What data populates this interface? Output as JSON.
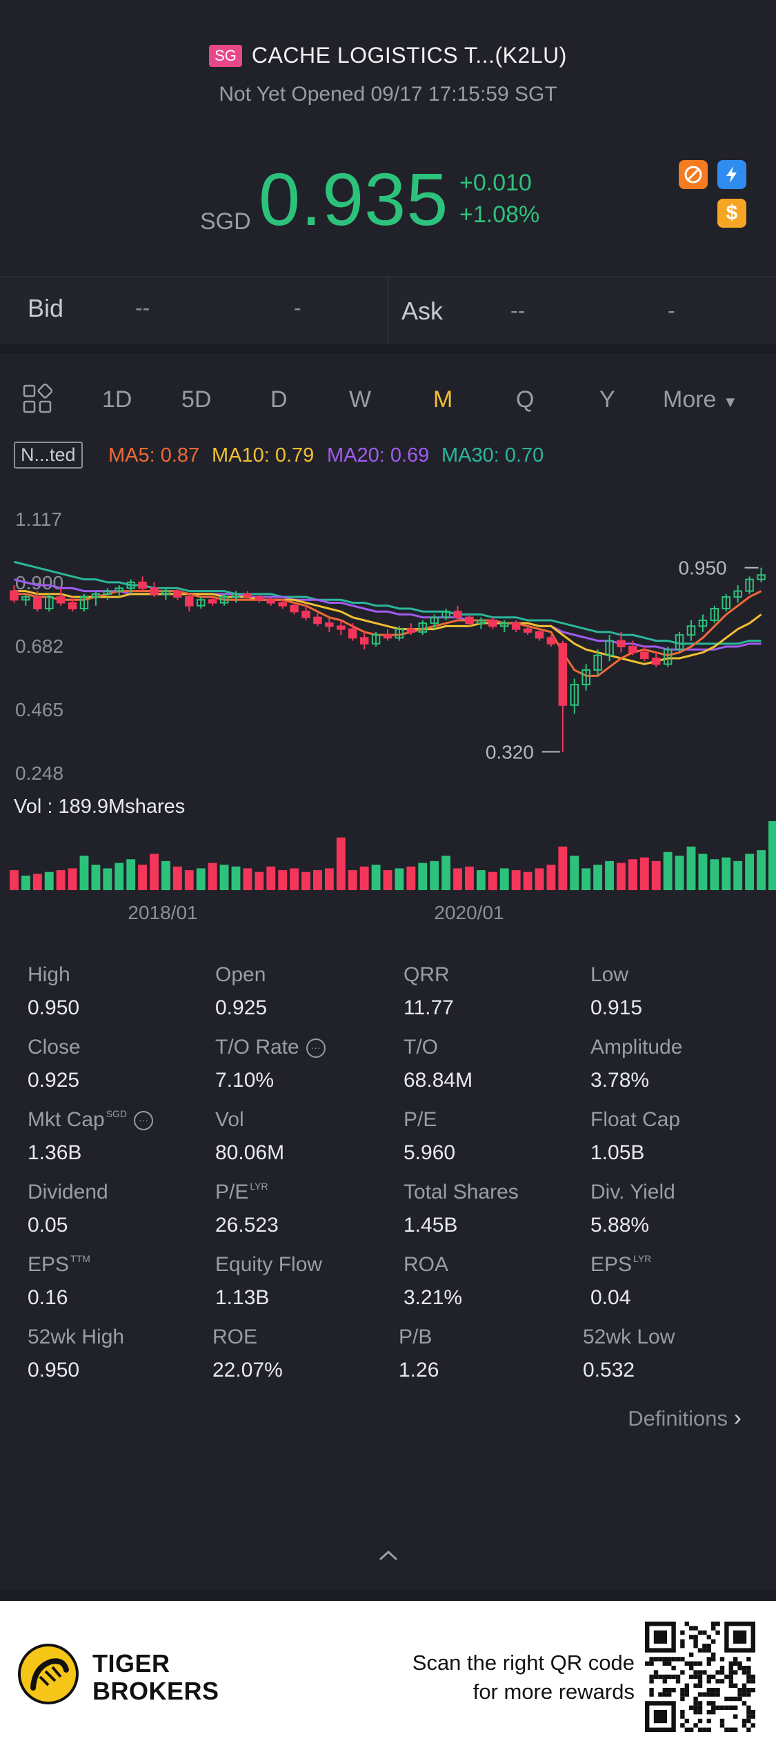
{
  "header": {
    "market_badge": "SG",
    "title": "CACHE LOGISTICS T...(K2LU)",
    "status": "Not Yet Opened 09/17 17:15:59 SGT"
  },
  "quote": {
    "currency": "SGD",
    "price": "0.935",
    "change": "+0.010",
    "change_pct": "+1.08%",
    "up_color": "#2dc27c",
    "down_color": "#f4365a"
  },
  "bid_ask": {
    "bid_label": "Bid",
    "bid_price": "--",
    "bid_size": "-",
    "ask_label": "Ask",
    "ask_price": "--",
    "ask_size": "-"
  },
  "tabs": {
    "items": [
      "1D",
      "5D",
      "D",
      "W",
      "M",
      "Q",
      "Y"
    ],
    "active": "M",
    "more": "More"
  },
  "indicators": {
    "adjust": "N...ted",
    "ma5": "MA5: 0.87",
    "ma10": "MA10: 0.79",
    "ma20": "MA20: 0.69",
    "ma30": "MA30: 0.70",
    "ma5_color": "#f06a35",
    "ma10_color": "#f2c031",
    "ma20_color": "#a05cf0",
    "ma30_color": "#29b79c"
  },
  "chart_data": {
    "type": "candlestick",
    "y_ticks": [
      "1.117",
      "0.900",
      "0.682",
      "0.465",
      "0.248"
    ],
    "ylim": [
      0.248,
      1.117
    ],
    "x_ticks": [
      "2018/01",
      "2020/01"
    ],
    "max_annotation": "0.950",
    "min_annotation": "0.320",
    "volume_label": "Vol  : 189.9Mshares",
    "candles": [
      {
        "o": 0.87,
        "h": 0.89,
        "l": 0.83,
        "c": 0.84
      },
      {
        "o": 0.84,
        "h": 0.86,
        "l": 0.82,
        "c": 0.85
      },
      {
        "o": 0.85,
        "h": 0.87,
        "l": 0.8,
        "c": 0.81
      },
      {
        "o": 0.81,
        "h": 0.86,
        "l": 0.8,
        "c": 0.85
      },
      {
        "o": 0.85,
        "h": 0.88,
        "l": 0.82,
        "c": 0.83
      },
      {
        "o": 0.83,
        "h": 0.85,
        "l": 0.8,
        "c": 0.81
      },
      {
        "o": 0.81,
        "h": 0.86,
        "l": 0.8,
        "c": 0.85
      },
      {
        "o": 0.85,
        "h": 0.87,
        "l": 0.82,
        "c": 0.86
      },
      {
        "o": 0.86,
        "h": 0.88,
        "l": 0.84,
        "c": 0.87
      },
      {
        "o": 0.87,
        "h": 0.89,
        "l": 0.85,
        "c": 0.88
      },
      {
        "o": 0.88,
        "h": 0.91,
        "l": 0.86,
        "c": 0.9
      },
      {
        "o": 0.9,
        "h": 0.92,
        "l": 0.87,
        "c": 0.88
      },
      {
        "o": 0.88,
        "h": 0.9,
        "l": 0.85,
        "c": 0.86
      },
      {
        "o": 0.86,
        "h": 0.88,
        "l": 0.84,
        "c": 0.87
      },
      {
        "o": 0.87,
        "h": 0.88,
        "l": 0.84,
        "c": 0.85
      },
      {
        "o": 0.85,
        "h": 0.86,
        "l": 0.8,
        "c": 0.82
      },
      {
        "o": 0.82,
        "h": 0.85,
        "l": 0.81,
        "c": 0.84
      },
      {
        "o": 0.84,
        "h": 0.85,
        "l": 0.82,
        "c": 0.83
      },
      {
        "o": 0.83,
        "h": 0.86,
        "l": 0.82,
        "c": 0.85
      },
      {
        "o": 0.85,
        "h": 0.87,
        "l": 0.83,
        "c": 0.86
      },
      {
        "o": 0.86,
        "h": 0.87,
        "l": 0.84,
        "c": 0.85
      },
      {
        "o": 0.85,
        "h": 0.86,
        "l": 0.83,
        "c": 0.84
      },
      {
        "o": 0.84,
        "h": 0.85,
        "l": 0.82,
        "c": 0.83
      },
      {
        "o": 0.83,
        "h": 0.84,
        "l": 0.81,
        "c": 0.82
      },
      {
        "o": 0.82,
        "h": 0.83,
        "l": 0.79,
        "c": 0.8
      },
      {
        "o": 0.8,
        "h": 0.82,
        "l": 0.77,
        "c": 0.78
      },
      {
        "o": 0.78,
        "h": 0.8,
        "l": 0.75,
        "c": 0.76
      },
      {
        "o": 0.76,
        "h": 0.78,
        "l": 0.73,
        "c": 0.75
      },
      {
        "o": 0.75,
        "h": 0.77,
        "l": 0.72,
        "c": 0.74
      },
      {
        "o": 0.74,
        "h": 0.76,
        "l": 0.7,
        "c": 0.71
      },
      {
        "o": 0.71,
        "h": 0.73,
        "l": 0.67,
        "c": 0.69
      },
      {
        "o": 0.69,
        "h": 0.73,
        "l": 0.68,
        "c": 0.72
      },
      {
        "o": 0.72,
        "h": 0.74,
        "l": 0.7,
        "c": 0.71
      },
      {
        "o": 0.71,
        "h": 0.75,
        "l": 0.7,
        "c": 0.74
      },
      {
        "o": 0.74,
        "h": 0.76,
        "l": 0.72,
        "c": 0.73
      },
      {
        "o": 0.73,
        "h": 0.77,
        "l": 0.72,
        "c": 0.76
      },
      {
        "o": 0.76,
        "h": 0.79,
        "l": 0.74,
        "c": 0.78
      },
      {
        "o": 0.78,
        "h": 0.81,
        "l": 0.77,
        "c": 0.8
      },
      {
        "o": 0.8,
        "h": 0.82,
        "l": 0.77,
        "c": 0.78
      },
      {
        "o": 0.78,
        "h": 0.79,
        "l": 0.75,
        "c": 0.76
      },
      {
        "o": 0.76,
        "h": 0.78,
        "l": 0.74,
        "c": 0.77
      },
      {
        "o": 0.77,
        "h": 0.78,
        "l": 0.74,
        "c": 0.75
      },
      {
        "o": 0.75,
        "h": 0.77,
        "l": 0.73,
        "c": 0.76
      },
      {
        "o": 0.76,
        "h": 0.77,
        "l": 0.73,
        "c": 0.74
      },
      {
        "o": 0.74,
        "h": 0.75,
        "l": 0.72,
        "c": 0.73
      },
      {
        "o": 0.73,
        "h": 0.74,
        "l": 0.7,
        "c": 0.71
      },
      {
        "o": 0.71,
        "h": 0.72,
        "l": 0.68,
        "c": 0.69
      },
      {
        "o": 0.69,
        "h": 0.7,
        "l": 0.32,
        "c": 0.48
      },
      {
        "o": 0.48,
        "h": 0.57,
        "l": 0.45,
        "c": 0.55
      },
      {
        "o": 0.55,
        "h": 0.62,
        "l": 0.53,
        "c": 0.6
      },
      {
        "o": 0.6,
        "h": 0.67,
        "l": 0.58,
        "c": 0.65
      },
      {
        "o": 0.65,
        "h": 0.72,
        "l": 0.63,
        "c": 0.7
      },
      {
        "o": 0.7,
        "h": 0.73,
        "l": 0.66,
        "c": 0.68
      },
      {
        "o": 0.68,
        "h": 0.7,
        "l": 0.65,
        "c": 0.66
      },
      {
        "o": 0.66,
        "h": 0.68,
        "l": 0.63,
        "c": 0.64
      },
      {
        "o": 0.64,
        "h": 0.66,
        "l": 0.61,
        "c": 0.62
      },
      {
        "o": 0.62,
        "h": 0.68,
        "l": 0.61,
        "c": 0.67
      },
      {
        "o": 0.67,
        "h": 0.73,
        "l": 0.66,
        "c": 0.72
      },
      {
        "o": 0.72,
        "h": 0.77,
        "l": 0.7,
        "c": 0.75
      },
      {
        "o": 0.75,
        "h": 0.79,
        "l": 0.73,
        "c": 0.77
      },
      {
        "o": 0.77,
        "h": 0.82,
        "l": 0.76,
        "c": 0.81
      },
      {
        "o": 0.81,
        "h": 0.86,
        "l": 0.8,
        "c": 0.85
      },
      {
        "o": 0.85,
        "h": 0.89,
        "l": 0.83,
        "c": 0.87
      },
      {
        "o": 0.87,
        "h": 0.92,
        "l": 0.86,
        "c": 0.91
      },
      {
        "o": 0.91,
        "h": 0.95,
        "l": 0.9,
        "c": 0.925
      }
    ],
    "volumes": [
      55,
      40,
      45,
      50,
      55,
      60,
      95,
      70,
      60,
      75,
      85,
      70,
      100,
      80,
      65,
      55,
      60,
      75,
      70,
      65,
      60,
      50,
      65,
      55,
      60,
      50,
      55,
      60,
      145,
      55,
      65,
      70,
      55,
      60,
      65,
      75,
      80,
      95,
      60,
      65,
      55,
      50,
      60,
      55,
      50,
      60,
      70,
      120,
      95,
      60,
      70,
      80,
      75,
      85,
      90,
      80,
      105,
      95,
      120,
      100,
      85,
      90,
      80,
      100,
      110,
      190
    ],
    "ma5": [
      0.86,
      0.86,
      0.85,
      0.85,
      0.84,
      0.84,
      0.84,
      0.85,
      0.86,
      0.87,
      0.87,
      0.87,
      0.87,
      0.87,
      0.87,
      0.86,
      0.85,
      0.85,
      0.84,
      0.84,
      0.84,
      0.84,
      0.84,
      0.84,
      0.83,
      0.82,
      0.8,
      0.78,
      0.77,
      0.75,
      0.73,
      0.72,
      0.72,
      0.72,
      0.73,
      0.74,
      0.75,
      0.76,
      0.77,
      0.77,
      0.77,
      0.77,
      0.76,
      0.76,
      0.75,
      0.74,
      0.73,
      0.66,
      0.6,
      0.58,
      0.58,
      0.61,
      0.64,
      0.66,
      0.67,
      0.66,
      0.65,
      0.66,
      0.68,
      0.71,
      0.75,
      0.79,
      0.82,
      0.85,
      0.87
    ],
    "ma10": [
      0.87,
      0.87,
      0.86,
      0.86,
      0.86,
      0.85,
      0.85,
      0.85,
      0.85,
      0.85,
      0.86,
      0.86,
      0.86,
      0.86,
      0.86,
      0.86,
      0.86,
      0.86,
      0.85,
      0.85,
      0.85,
      0.84,
      0.84,
      0.84,
      0.84,
      0.83,
      0.82,
      0.81,
      0.8,
      0.78,
      0.77,
      0.76,
      0.75,
      0.74,
      0.74,
      0.74,
      0.74,
      0.75,
      0.75,
      0.75,
      0.76,
      0.76,
      0.76,
      0.76,
      0.76,
      0.75,
      0.75,
      0.72,
      0.69,
      0.67,
      0.66,
      0.65,
      0.64,
      0.63,
      0.62,
      0.63,
      0.64,
      0.64,
      0.65,
      0.66,
      0.68,
      0.71,
      0.74,
      0.76,
      0.79
    ],
    "ma20": [
      0.91,
      0.9,
      0.89,
      0.89,
      0.88,
      0.88,
      0.87,
      0.87,
      0.87,
      0.87,
      0.86,
      0.86,
      0.86,
      0.86,
      0.86,
      0.86,
      0.86,
      0.86,
      0.86,
      0.86,
      0.85,
      0.85,
      0.85,
      0.85,
      0.84,
      0.84,
      0.84,
      0.83,
      0.83,
      0.82,
      0.81,
      0.8,
      0.8,
      0.79,
      0.79,
      0.78,
      0.78,
      0.78,
      0.78,
      0.77,
      0.77,
      0.77,
      0.76,
      0.76,
      0.76,
      0.75,
      0.75,
      0.73,
      0.72,
      0.71,
      0.7,
      0.7,
      0.69,
      0.69,
      0.68,
      0.68,
      0.67,
      0.67,
      0.67,
      0.67,
      0.67,
      0.68,
      0.68,
      0.69,
      0.69
    ],
    "ma30": [
      0.97,
      0.96,
      0.95,
      0.94,
      0.93,
      0.92,
      0.91,
      0.91,
      0.9,
      0.9,
      0.89,
      0.89,
      0.88,
      0.88,
      0.88,
      0.87,
      0.87,
      0.87,
      0.87,
      0.86,
      0.86,
      0.86,
      0.86,
      0.85,
      0.85,
      0.85,
      0.84,
      0.84,
      0.84,
      0.83,
      0.83,
      0.82,
      0.82,
      0.81,
      0.81,
      0.8,
      0.8,
      0.8,
      0.79,
      0.79,
      0.79,
      0.78,
      0.78,
      0.78,
      0.77,
      0.77,
      0.77,
      0.76,
      0.75,
      0.74,
      0.73,
      0.73,
      0.72,
      0.72,
      0.71,
      0.7,
      0.7,
      0.69,
      0.69,
      0.69,
      0.69,
      0.69,
      0.69,
      0.7,
      0.7
    ]
  },
  "stats": [
    [
      {
        "label": "High",
        "value": "0.950"
      },
      {
        "label": "Open",
        "value": "0.925"
      },
      {
        "label": "QRR",
        "value": "11.77"
      },
      {
        "label": "Low",
        "value": "0.915"
      }
    ],
    [
      {
        "label": "Close",
        "value": "0.925"
      },
      {
        "label": "T/O Rate",
        "value": "7.10%"
      },
      {
        "label": "T/O",
        "value": "68.84M"
      },
      {
        "label": "Amplitude",
        "value": "3.78%"
      }
    ],
    [
      {
        "label": "Mkt Cap",
        "value": "1.36B"
      },
      {
        "label": "Vol",
        "value": "80.06M"
      },
      {
        "label": "P/E",
        "value": "5.960"
      },
      {
        "label": "Float Cap",
        "value": "1.05B"
      }
    ],
    [
      {
        "label": "Dividend",
        "value": "0.05"
      },
      {
        "label": "P/E",
        "value": "26.523"
      },
      {
        "label": "Total Shares",
        "value": "1.45B"
      },
      {
        "label": "Div. Yield",
        "value": "5.88%"
      }
    ],
    [
      {
        "label": "EPS",
        "value": "0.16"
      },
      {
        "label": "Equity Flow",
        "value": "1.13B"
      },
      {
        "label": "ROA",
        "value": "3.21%"
      },
      {
        "label": "EPS",
        "value": "0.04"
      }
    ],
    [
      {
        "label": "52wk High",
        "value": "0.950"
      },
      {
        "label": "ROE",
        "value": "22.07%"
      },
      {
        "label": "P/B",
        "value": "1.26"
      },
      {
        "label": "52wk Low",
        "value": "0.532"
      }
    ]
  ],
  "stat_sups": {
    "mkt_cap": "SGD",
    "pe_lyr": "LYR",
    "eps_ttm": "TTM",
    "eps_lyr": "LYR",
    "info": "···"
  },
  "definitions": "Definitions",
  "footer": {
    "brand_line1": "TIGER",
    "brand_line2": "BROKERS",
    "scan_line1": "Scan the right QR code",
    "scan_line2": "for more rewards"
  }
}
